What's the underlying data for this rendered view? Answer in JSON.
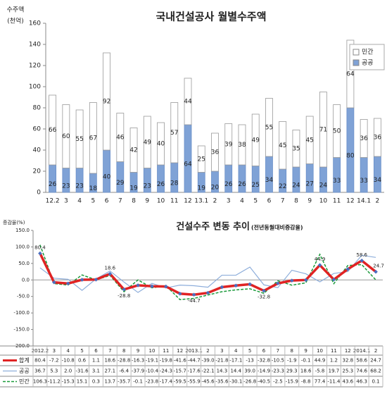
{
  "chart_data": [
    {
      "type": "stacked-bar",
      "title": "국내건설공사 월별수주액",
      "y_label": [
        "수주액",
        "(천억)"
      ],
      "categories": [
        "12.2",
        "3",
        "4",
        "5",
        "6",
        "7",
        "8",
        "9",
        "10",
        "11",
        "12",
        "13.1",
        "2",
        "3",
        "4",
        "5",
        "6",
        "7",
        "8",
        "9",
        "10",
        "11",
        "12",
        "14.1",
        "2"
      ],
      "series": [
        {
          "name": "공공",
          "color": "#7fa2d6",
          "values": [
            26,
            23,
            23,
            18,
            40,
            29,
            19,
            23,
            26,
            28,
            64,
            19,
            20,
            26,
            26,
            25,
            34,
            22,
            24,
            27,
            24,
            33,
            80,
            33,
            34
          ]
        },
        {
          "name": "민간",
          "color": "#ffffff",
          "values": [
            66,
            60,
            55,
            67,
            92,
            46,
            42,
            49,
            40,
            57,
            44,
            25,
            36,
            39,
            38,
            49,
            55,
            45,
            35,
            45,
            71,
            50,
            64,
            36,
            36
          ]
        }
      ],
      "ylim": [
        0,
        160
      ],
      "yticks": [
        0,
        20,
        40,
        60,
        80,
        100,
        120,
        140,
        160
      ],
      "legend": "right"
    },
    {
      "type": "line",
      "title": "건설수주 변동 추이",
      "subtitle": "(전년동월대비증감율)",
      "y_label": "증감율(%)",
      "categories": [
        "2012.2",
        "3",
        "4",
        "5",
        "6",
        "7",
        "8",
        "9",
        "10",
        "11",
        "12",
        "2013.1",
        "2",
        "3",
        "4",
        "5",
        "6",
        "7",
        "8",
        "9",
        "10",
        "11",
        "12",
        "2014.1",
        "2"
      ],
      "series": [
        {
          "name": "합계",
          "color": "#e02323",
          "values": [
            80.4,
            -7.2,
            -10.8,
            0.6,
            1.1,
            18.6,
            -28.8,
            -16.3,
            -19.1,
            -19.8,
            -41.6,
            -44.7,
            -39,
            -21.8,
            -17.1,
            -13.0,
            -32.8,
            -10.5,
            -1.9,
            -0.1,
            44.9,
            1.2,
            32.8,
            58.6,
            24.7
          ],
          "value_labels": [
            null,
            null,
            null,
            null,
            null,
            null,
            null,
            null,
            null,
            null,
            null,
            null,
            "-39.0",
            null,
            null,
            null,
            null,
            null,
            null,
            null,
            null,
            null,
            null,
            null,
            null
          ]
        },
        {
          "name": "공공",
          "color": "#8eaedb",
          "values": [
            36.7,
            5.3,
            2,
            -31.6,
            3.1,
            27.1,
            -6.4,
            -37.9,
            -10.4,
            -24.3,
            -15.7,
            -17.6,
            -22.1,
            14.3,
            14.4,
            39,
            -14.9,
            -23.3,
            29.3,
            18.6,
            -5.8,
            19.7,
            25.3,
            74.6,
            68.2
          ],
          "value_labels": [
            null,
            null,
            "2.0",
            null,
            null,
            null,
            null,
            null,
            null,
            null,
            null,
            null,
            null,
            null,
            null,
            "39.0",
            null,
            null,
            null,
            null,
            null,
            null,
            null,
            null,
            null
          ]
        },
        {
          "name": "민간",
          "color": "#1a9a3a",
          "values": [
            106.3,
            -11.2,
            -15.3,
            15.1,
            0.3,
            13.7,
            -35.7,
            -0.1,
            -23.8,
            -17.4,
            -59.5,
            -55.9,
            -45.6,
            -35.6,
            -30.1,
            -26.8,
            -40.5,
            -2.5,
            -15.9,
            -8.8,
            77.4,
            -11.4,
            43.6,
            46.3,
            0.1
          ]
        }
      ],
      "ylim": [
        -200,
        150
      ],
      "yticks": [
        {
          "value": -200,
          "label": "-200.0"
        },
        {
          "value": -150,
          "label": "-150.0"
        },
        {
          "value": -100,
          "label": "-100.0"
        },
        {
          "value": -50,
          "label": "-50.0"
        },
        {
          "value": 0,
          "label": "0.0"
        },
        {
          "value": 50,
          "label": "50.0"
        },
        {
          "value": 100,
          "label": "100.0"
        },
        {
          "value": 150,
          "label": "150.0"
        }
      ]
    }
  ]
}
